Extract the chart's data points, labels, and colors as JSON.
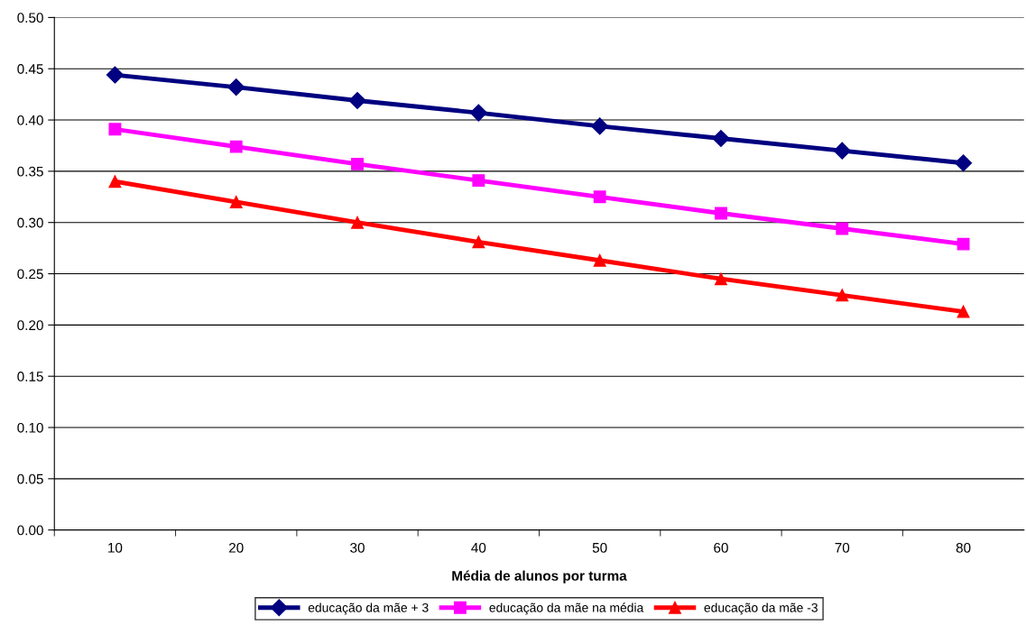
{
  "chart_data": {
    "type": "line",
    "xlabel": "Média de alunos por turma",
    "categories": [
      "10",
      "20",
      "30",
      "40",
      "50",
      "60",
      "70",
      "80"
    ],
    "series": [
      {
        "name": "educação da mãe + 3",
        "color": "#000080",
        "marker": "diamond",
        "values": [
          0.444,
          0.432,
          0.419,
          0.407,
          0.394,
          0.382,
          0.37,
          0.358
        ]
      },
      {
        "name": "educação da mãe na média",
        "color": "#ff00ff",
        "marker": "square",
        "values": [
          0.391,
          0.374,
          0.357,
          0.341,
          0.325,
          0.309,
          0.294,
          0.279
        ]
      },
      {
        "name": "educação da mãe -3",
        "color": "#ff0000",
        "marker": "triangle",
        "values": [
          0.34,
          0.32,
          0.3,
          0.281,
          0.263,
          0.245,
          0.229,
          0.213
        ]
      }
    ],
    "ylim": [
      0,
      0.5
    ],
    "yticks": [
      {
        "value": 0,
        "label": "0.00"
      },
      {
        "value": 0.05,
        "label": "0.05"
      },
      {
        "value": 0.1,
        "label": "0.10"
      },
      {
        "value": 0.15,
        "label": "0.15"
      },
      {
        "value": 0.2,
        "label": "0.20"
      },
      {
        "value": 0.25,
        "label": "0.25"
      },
      {
        "value": 0.3,
        "label": "0.30"
      },
      {
        "value": 0.35,
        "label": "0.35"
      },
      {
        "value": 0.4,
        "label": "0.40"
      },
      {
        "value": 0.45,
        "label": "0.45"
      },
      {
        "value": 0.5,
        "label": "0.50"
      }
    ],
    "grid": "y",
    "legend": "bottom",
    "line_style": "solid"
  }
}
